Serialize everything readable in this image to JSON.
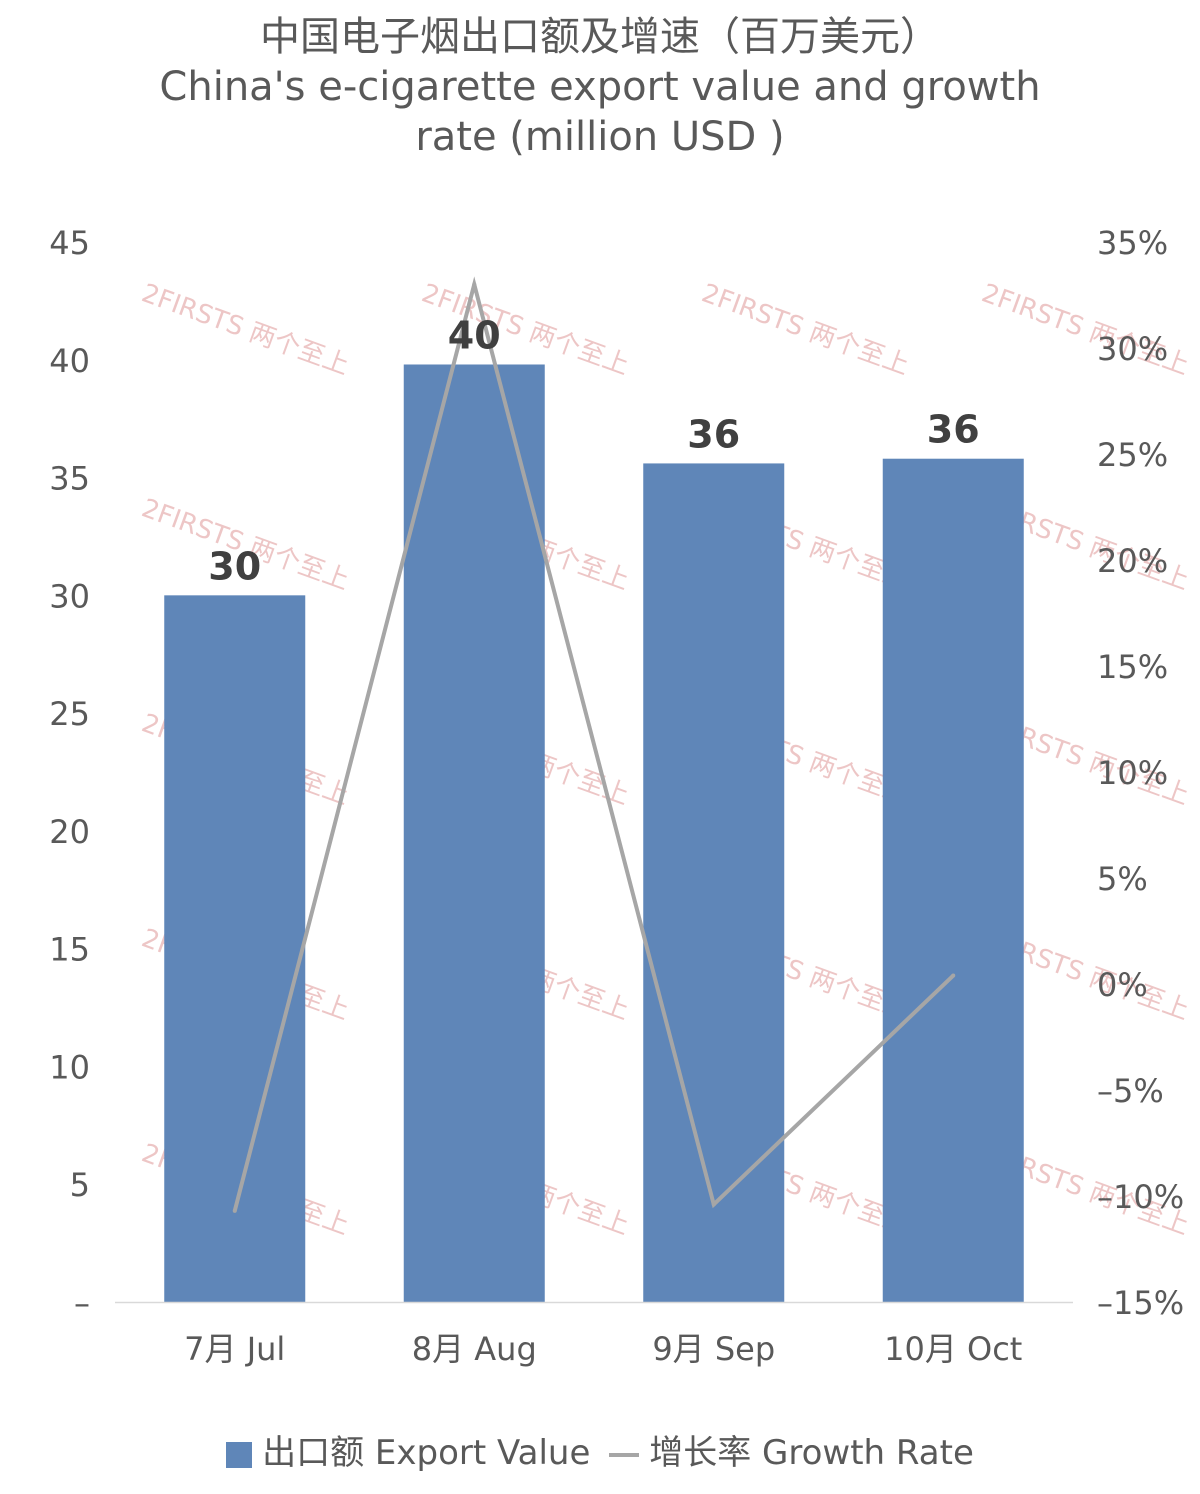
{
  "title": {
    "zh": "中国电子烟出口额及增速（百万美元）",
    "en_line1": "China's e-cigarette export value and growth",
    "en_line2": "rate (million USD )"
  },
  "watermark": "2FIRSTS 两个至上",
  "chart_data": {
    "type": "bar",
    "categories": [
      "7月 Jul",
      "8月 Aug",
      "9月 Sep",
      "10月 Oct"
    ],
    "series": [
      {
        "name": "出口额 Export Value",
        "type": "bar",
        "axis": "left",
        "values": [
          30,
          39.8,
          35.6,
          35.8
        ],
        "data_labels": [
          "30",
          "40",
          "36",
          "36"
        ],
        "color": "#5F86B8"
      },
      {
        "name": "增长率 Growth Rate",
        "type": "line",
        "axis": "right",
        "values": [
          -10.7,
          33.0,
          -10.4,
          0.4
        ],
        "unit": "%",
        "color": "#A6A6A6"
      }
    ],
    "y_left": {
      "ylim": [
        0,
        45
      ],
      "ticks": [
        0,
        5,
        10,
        15,
        20,
        25,
        30,
        35,
        40,
        45
      ],
      "tick_labels": [
        "–",
        "5",
        "10",
        "15",
        "20",
        "25",
        "30",
        "35",
        "40",
        "45"
      ]
    },
    "y_right": {
      "ylim": [
        -15,
        35
      ],
      "ticks": [
        -15,
        -10,
        -5,
        0,
        5,
        10,
        15,
        20,
        25,
        30,
        35
      ],
      "tick_labels": [
        "–15%",
        "–10%",
        "–5%",
        "0%",
        "5%",
        "10%",
        "15%",
        "20%",
        "25%",
        "30%",
        "35%"
      ]
    },
    "grid": false,
    "legend_position": "bottom"
  },
  "legend": {
    "bar_label": "出口额 Export Value",
    "line_label": "增长率 Growth Rate"
  },
  "colors": {
    "bar": "#5F86B8",
    "line": "#A6A6A6",
    "text": "#595959",
    "data_label": "#404040",
    "watermark": "#E8B4B4"
  }
}
